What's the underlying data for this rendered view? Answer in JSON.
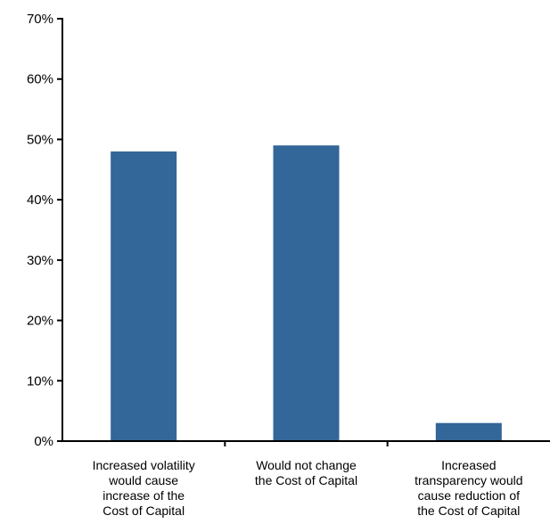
{
  "chart_data": {
    "type": "bar",
    "title": "",
    "xlabel": "",
    "ylabel": "",
    "categories": [
      [
        "Increased volatility",
        "would cause",
        "increase of the",
        "Cost of Capital"
      ],
      [
        "Would not change",
        "the Cost of Capital"
      ],
      [
        "Increased",
        "transparency would",
        "cause reduction of",
        "the Cost of Capital"
      ]
    ],
    "values": [
      48,
      49,
      3
    ],
    "ylim": [
      0,
      70
    ],
    "yticks": [
      0,
      10,
      20,
      30,
      40,
      50,
      60,
      70
    ],
    "ytick_labels": [
      "0%",
      "10%",
      "20%",
      "30%",
      "40%",
      "50%",
      "60%",
      "70%"
    ],
    "bar_color": "#336699",
    "grid": false,
    "legend": "none"
  }
}
